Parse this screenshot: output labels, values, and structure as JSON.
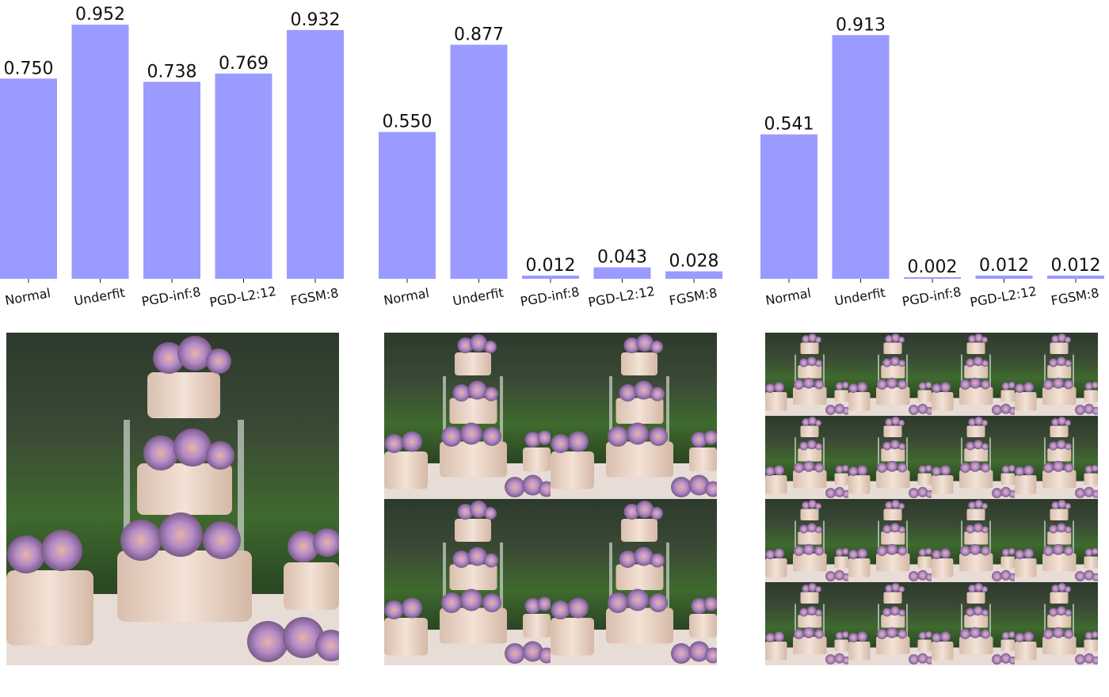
{
  "chart_data": [
    {
      "type": "bar",
      "categories": [
        "Normal",
        "Underfit",
        "PGD-inf:8",
        "PGD-L2:12",
        "FGSM:8"
      ],
      "values": [
        0.75,
        0.952,
        0.738,
        0.769,
        0.932
      ],
      "value_labels": [
        "0.750",
        "0.952",
        "0.738",
        "0.769",
        "0.932"
      ],
      "ylim": [
        0,
        1
      ],
      "grid": false,
      "bar_color": "#9b9bff",
      "image": {
        "tiles": 1
      }
    },
    {
      "type": "bar",
      "categories": [
        "Normal",
        "Underfit",
        "PGD-inf:8",
        "PGD-L2:12",
        "FGSM:8"
      ],
      "values": [
        0.55,
        0.877,
        0.012,
        0.043,
        0.028
      ],
      "value_labels": [
        "0.550",
        "0.877",
        "0.012",
        "0.043",
        "0.028"
      ],
      "ylim": [
        0,
        1
      ],
      "grid": false,
      "bar_color": "#9b9bff",
      "image": {
        "tiles": 2
      }
    },
    {
      "type": "bar",
      "categories": [
        "Normal",
        "Underfit",
        "PGD-inf:8",
        "PGD-L2:12",
        "FGSM:8"
      ],
      "values": [
        0.541,
        0.913,
        0.002,
        0.012,
        0.012
      ],
      "value_labels": [
        "0.541",
        "0.913",
        "0.002",
        "0.012",
        "0.012"
      ],
      "ylim": [
        0,
        1
      ],
      "grid": false,
      "bar_color": "#9b9bff",
      "image": {
        "tiles": 4
      }
    }
  ]
}
